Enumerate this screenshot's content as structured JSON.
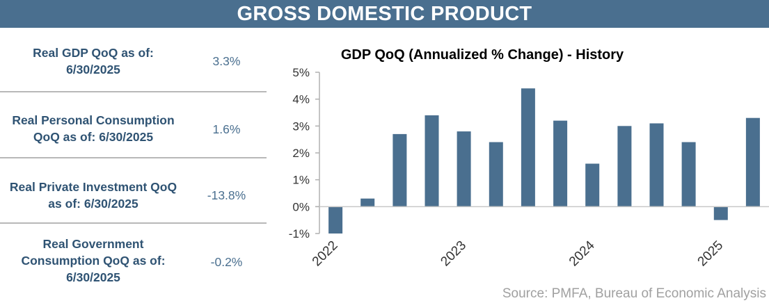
{
  "banner": {
    "title": "GROSS DOMESTIC PRODUCT"
  },
  "metrics": [
    {
      "label_lines": [
        "Real GDP QoQ as of:",
        "6/30/2025"
      ],
      "value": "3.3%"
    },
    {
      "label_lines": [
        "Real Personal Consumption",
        "QoQ as of: 6/30/2025"
      ],
      "value": "1.6%"
    },
    {
      "label_lines": [
        "Real Private Investment QoQ",
        "as of: 6/30/2025"
      ],
      "value": "-13.8%"
    },
    {
      "label_lines": [
        "Real Government",
        "Consumption QoQ as of:",
        "6/30/2025"
      ],
      "value": "-0.2%"
    }
  ],
  "chart_data": {
    "type": "bar",
    "title": "GDP QoQ (Annualized % Change) - History",
    "xlabel": "",
    "ylabel": "",
    "ylim": [
      -1,
      5
    ],
    "yticks": [
      -1,
      0,
      1,
      2,
      3,
      4,
      5
    ],
    "ytick_labels": [
      "-1%",
      "0%",
      "1%",
      "2%",
      "3%",
      "4%",
      "5%"
    ],
    "categories": [
      "2022 Q1",
      "2022 Q2",
      "2022 Q3",
      "2022 Q4",
      "2023 Q1",
      "2023 Q2",
      "2023 Q3",
      "2023 Q4",
      "2024 Q1",
      "2024 Q2",
      "2024 Q3",
      "2024 Q4",
      "2025 Q1",
      "2025 Q2"
    ],
    "values": [
      -1.0,
      0.3,
      2.7,
      3.4,
      2.8,
      2.4,
      4.4,
      3.2,
      1.6,
      3.0,
      3.1,
      2.4,
      -0.5,
      3.3
    ],
    "xtick_labels": [
      {
        "label": "2022",
        "index": 0
      },
      {
        "label": "2023",
        "index": 4
      },
      {
        "label": "2024",
        "index": 8
      },
      {
        "label": "2025",
        "index": 12
      }
    ],
    "bar_color": "#4a6f8f",
    "grid": false
  },
  "source": {
    "text": "Source:  PMFA,  Bureau of Economic Analysis"
  }
}
